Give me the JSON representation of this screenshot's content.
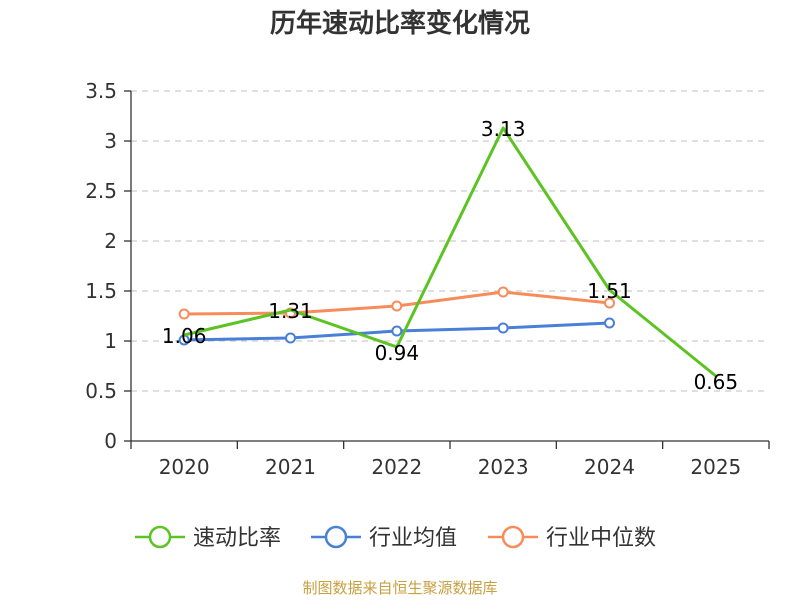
{
  "chart_data": {
    "type": "line",
    "title": "历年速动比率变化情况",
    "categories": [
      "2020",
      "2021",
      "2022",
      "2023",
      "2024",
      "2025"
    ],
    "ylim": [
      0,
      3.5
    ],
    "yticks": [
      "0",
      "0.5",
      "1",
      "1.5",
      "2",
      "2.5",
      "3",
      "3.5"
    ],
    "ytick_values": [
      0,
      0.5,
      1,
      1.5,
      2,
      2.5,
      3,
      3.5
    ],
    "grid": true,
    "legend_position": "bottom",
    "series": [
      {
        "name": "速动比率",
        "color": "#5cc323",
        "values": [
          1.06,
          1.31,
          0.94,
          3.13,
          1.51,
          0.65
        ],
        "labels": [
          "1.06",
          "1.31",
          "0.94",
          "3.13",
          "1.51",
          "0.65"
        ],
        "show_markers": false,
        "show_labels": true
      },
      {
        "name": "行业均值",
        "color": "#4a7fd8",
        "values": [
          1.01,
          1.03,
          1.1,
          1.13,
          1.18,
          null
        ],
        "show_markers": true,
        "show_labels": false
      },
      {
        "name": "行业中位数",
        "color": "#f78c5a",
        "values": [
          1.27,
          1.28,
          1.35,
          1.49,
          1.38,
          null
        ],
        "show_markers": true,
        "show_labels": false
      }
    ]
  },
  "source_note": "制图数据来自恒生聚源数据库"
}
